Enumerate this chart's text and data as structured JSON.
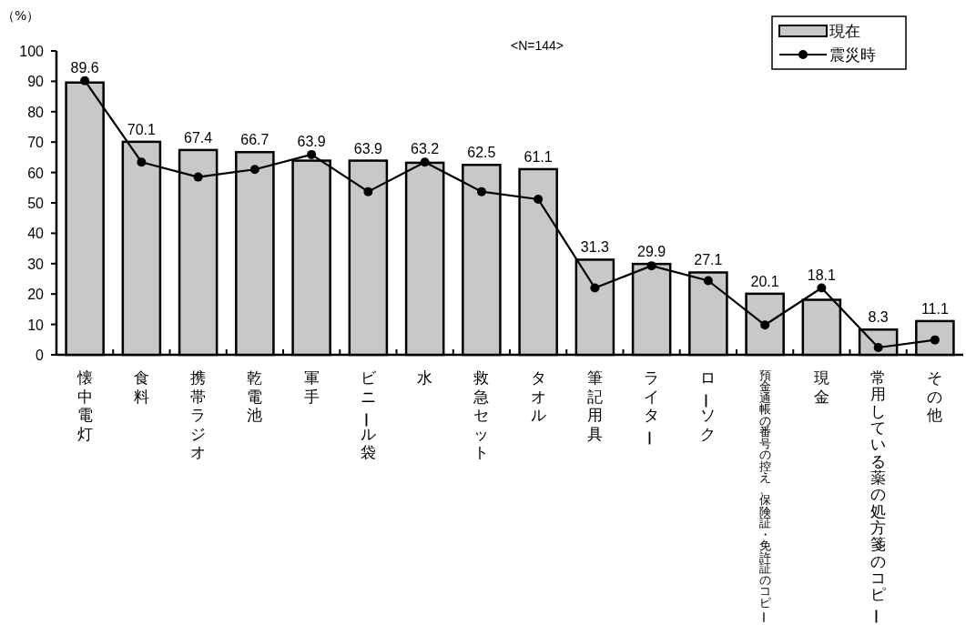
{
  "chart_data": {
    "type": "bar",
    "ylabel": "（%）",
    "annotations": [
      "<N=144>"
    ],
    "categories": [
      "懐中電灯",
      "食料",
      "携帯ラジオ",
      "乾電池",
      "軍手",
      "ビニール袋",
      "水",
      "救急セット",
      "タオル",
      "筆記用具",
      "ライター",
      "ローソク",
      "預金通帳の番号の控え、保険証・免許証のコピー",
      "現金",
      "常用している薬の処方箋のコピー",
      "その他"
    ],
    "series": [
      {
        "name": "現在",
        "color": "#c8c8c8",
        "values": [
          89.6,
          70.1,
          67.4,
          66.7,
          63.9,
          63.9,
          63.2,
          62.5,
          61.1,
          31.3,
          29.9,
          27.1,
          20.1,
          18.1,
          8.3,
          11.1
        ],
        "value_labels": [
          "89.6",
          "70.1",
          "67.4",
          "66.7",
          "63.9",
          "63.9",
          "63.2",
          "62.5",
          "61.1",
          "31.3",
          "29.9",
          "27.1",
          "20.1",
          "18.1",
          "8.3",
          "11.1"
        ]
      },
      {
        "name": "震災時",
        "type": "line",
        "color": "#000000",
        "marker": "circle",
        "values": [
          90.2,
          63.4,
          58.5,
          61.0,
          65.9,
          53.7,
          63.4,
          53.7,
          51.2,
          22.0,
          29.3,
          24.4,
          9.8,
          22.0,
          2.4,
          4.9
        ]
      }
    ],
    "ylim": [
      0,
      100
    ],
    "yticks": [
      0,
      10,
      20,
      30,
      40,
      50,
      60,
      70,
      80,
      90,
      100
    ],
    "grid": false,
    "legend": "top right"
  }
}
